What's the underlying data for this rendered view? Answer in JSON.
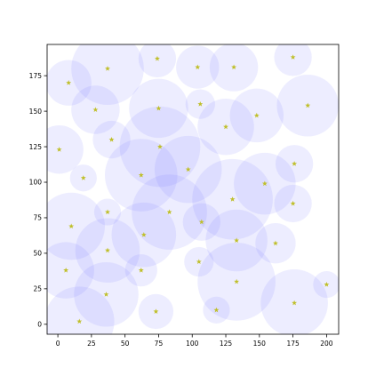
{
  "chart_data": {
    "type": "scatter",
    "title": "",
    "xlabel": "",
    "ylabel": "",
    "xlim": [
      -8,
      209
    ],
    "ylim": [
      -7,
      197
    ],
    "xticks": [
      0,
      25,
      50,
      75,
      100,
      125,
      150,
      175,
      200
    ],
    "yticks": [
      0,
      25,
      50,
      75,
      100,
      125,
      150,
      175
    ],
    "grid": false,
    "legend": "none",
    "colors": {
      "bubble_fill": "#8080ff",
      "bubble_opacity": 0.14,
      "marker": "#bfbf2a",
      "axes": "#000000",
      "background": "#ffffff"
    },
    "marker_symbol": "star",
    "points": [
      {
        "x": 8,
        "y": 170,
        "r": 17
      },
      {
        "x": 37,
        "y": 180,
        "r": 27
      },
      {
        "x": 74,
        "y": 187,
        "r": 14
      },
      {
        "x": 104,
        "y": 181,
        "r": 16
      },
      {
        "x": 131,
        "y": 181,
        "r": 18
      },
      {
        "x": 175,
        "y": 188,
        "r": 14
      },
      {
        "x": 28,
        "y": 151,
        "r": 18
      },
      {
        "x": 75,
        "y": 152,
        "r": 22
      },
      {
        "x": 106,
        "y": 155,
        "r": 11
      },
      {
        "x": 125,
        "y": 139,
        "r": 21
      },
      {
        "x": 148,
        "y": 147,
        "r": 20
      },
      {
        "x": 186,
        "y": 154,
        "r": 23
      },
      {
        "x": 1,
        "y": 123,
        "r": 18
      },
      {
        "x": 40,
        "y": 130,
        "r": 14
      },
      {
        "x": 76,
        "y": 125,
        "r": 30
      },
      {
        "x": 97,
        "y": 109,
        "r": 25
      },
      {
        "x": 176,
        "y": 113,
        "r": 14
      },
      {
        "x": 19,
        "y": 103,
        "r": 10
      },
      {
        "x": 62,
        "y": 105,
        "r": 27
      },
      {
        "x": 154,
        "y": 99,
        "r": 23
      },
      {
        "x": 130,
        "y": 88,
        "r": 30
      },
      {
        "x": 175,
        "y": 85,
        "r": 14
      },
      {
        "x": 37,
        "y": 79,
        "r": 10
      },
      {
        "x": 83,
        "y": 79,
        "r": 28
      },
      {
        "x": 10,
        "y": 69,
        "r": 25
      },
      {
        "x": 107,
        "y": 72,
        "r": 14
      },
      {
        "x": 64,
        "y": 63,
        "r": 24
      },
      {
        "x": 133,
        "y": 59,
        "r": 23
      },
      {
        "x": 162,
        "y": 57,
        "r": 15
      },
      {
        "x": 37,
        "y": 52,
        "r": 24
      },
      {
        "x": 6,
        "y": 38,
        "r": 21
      },
      {
        "x": 62,
        "y": 38,
        "r": 12
      },
      {
        "x": 105,
        "y": 44,
        "r": 11
      },
      {
        "x": 36,
        "y": 21,
        "r": 24
      },
      {
        "x": 133,
        "y": 30,
        "r": 29
      },
      {
        "x": 200,
        "y": 28,
        "r": 10
      },
      {
        "x": 176,
        "y": 15,
        "r": 25
      },
      {
        "x": 16,
        "y": 2,
        "r": 26
      },
      {
        "x": 73,
        "y": 9,
        "r": 13
      },
      {
        "x": 118,
        "y": 10,
        "r": 10
      }
    ]
  }
}
